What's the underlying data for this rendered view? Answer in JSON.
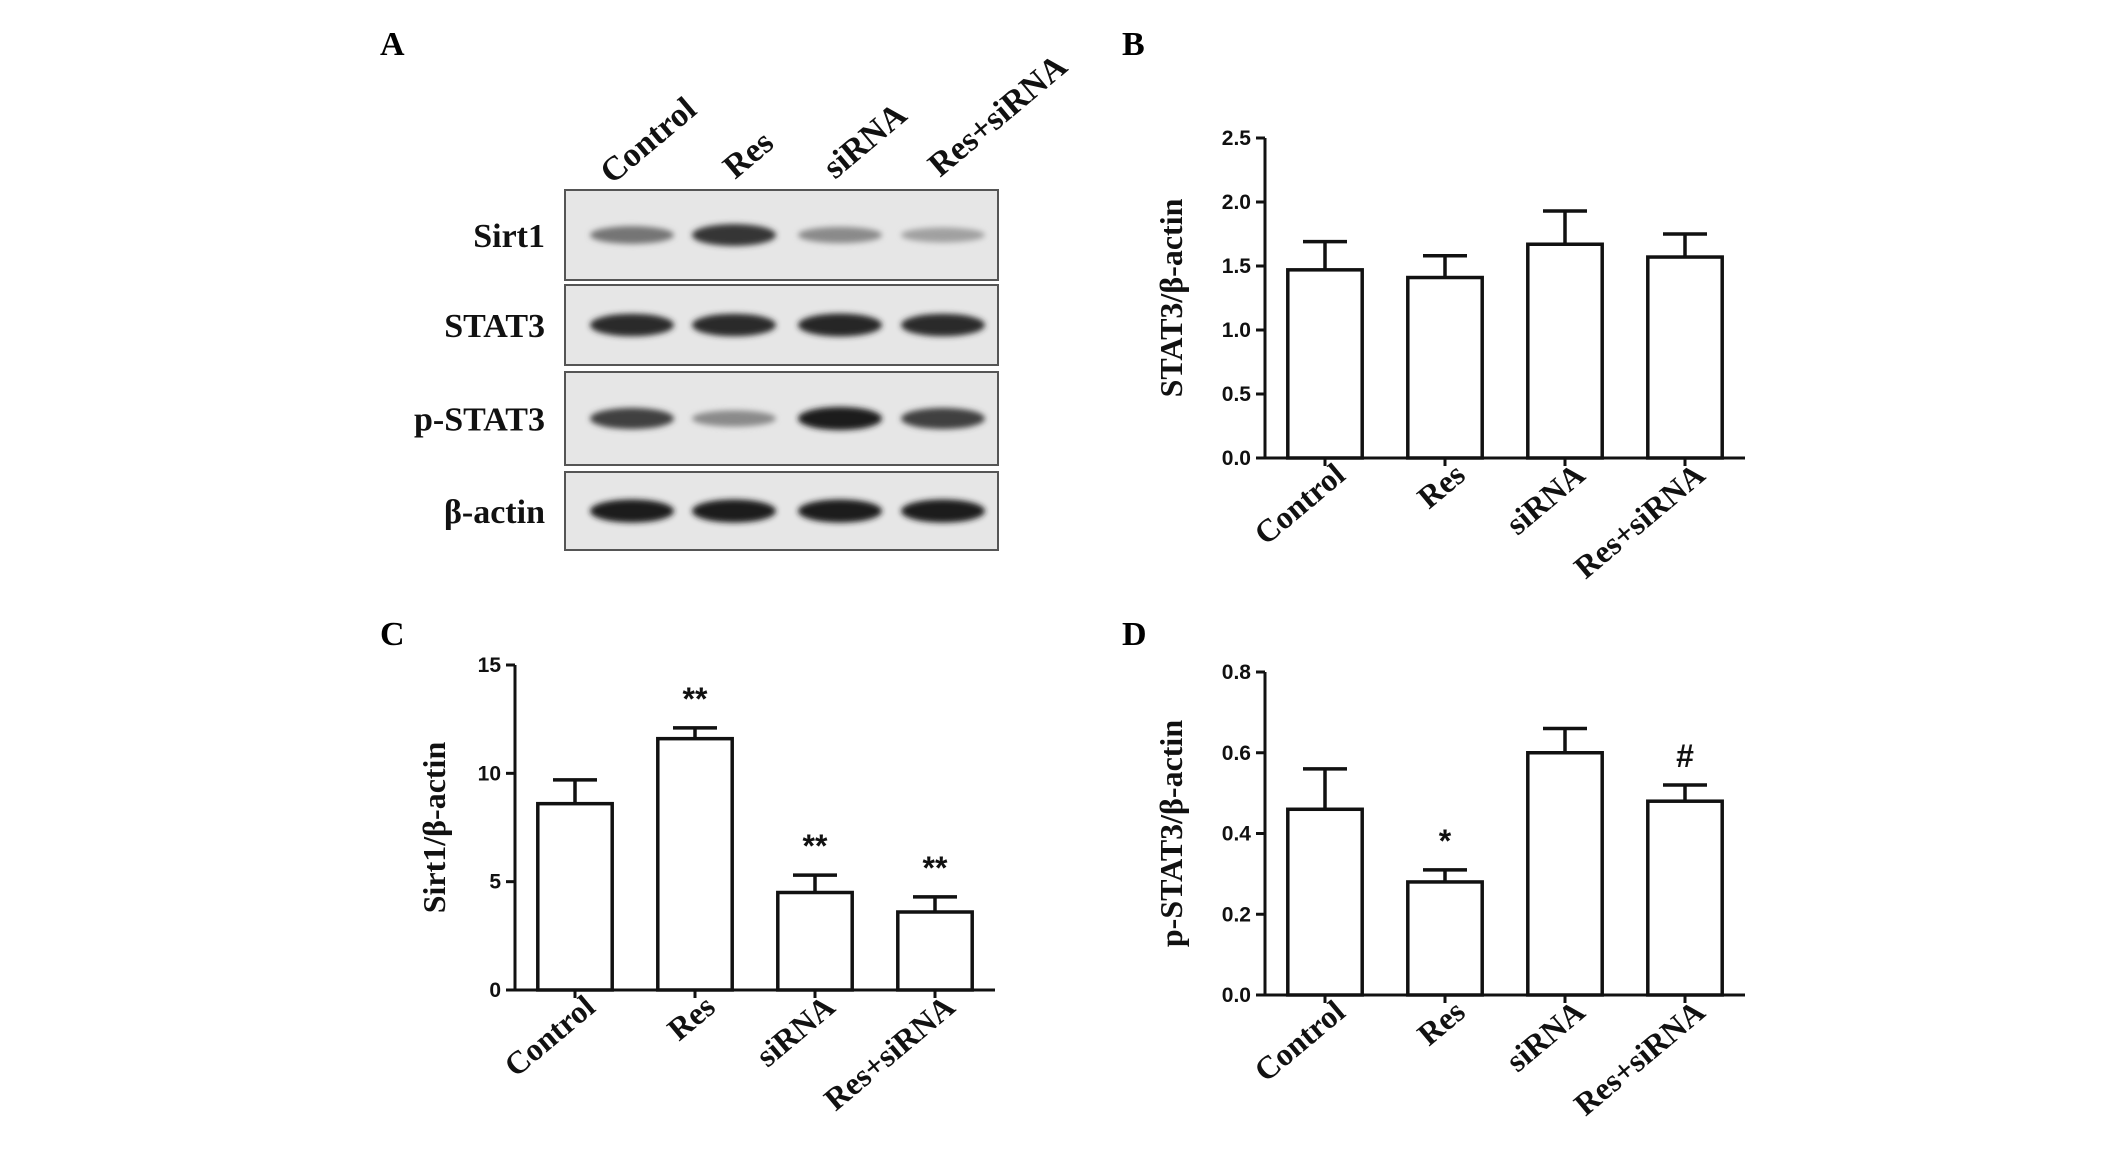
{
  "panels": {
    "A": "A",
    "B": "B",
    "C": "C",
    "D": "D"
  },
  "western_blot": {
    "lanes": [
      "Control",
      "Res",
      "siRNA",
      "Res+siRNA"
    ],
    "rows": [
      {
        "label": "Sirt1",
        "intensity": [
          0.55,
          0.85,
          0.45,
          0.35
        ]
      },
      {
        "label": "STAT3",
        "intensity": [
          0.9,
          0.9,
          0.92,
          0.9
        ]
      },
      {
        "label": "p-STAT3",
        "intensity": [
          0.8,
          0.45,
          0.95,
          0.8
        ]
      },
      {
        "label": "β-actin",
        "intensity": [
          0.95,
          0.95,
          0.95,
          0.95
        ]
      }
    ]
  },
  "chart_data": [
    {
      "panel": "B",
      "type": "bar",
      "categories": [
        "Control",
        "Res",
        "siRNA",
        "Res+siRNA"
      ],
      "values": [
        1.47,
        1.41,
        1.67,
        1.57
      ],
      "errors": [
        0.22,
        0.17,
        0.26,
        0.18
      ],
      "significance": [
        "",
        "",
        "",
        ""
      ],
      "ylabel": "STAT3/β-actin",
      "xlabel": "",
      "ylim": [
        0,
        2.5
      ],
      "yticks": [
        "0.0",
        "0.5",
        "1.0",
        "1.5",
        "2.0",
        "2.5"
      ],
      "ytick_values": [
        0,
        0.5,
        1.0,
        1.5,
        2.0,
        2.5
      ],
      "grid": false
    },
    {
      "panel": "C",
      "type": "bar",
      "categories": [
        "Control",
        "Res",
        "siRNA",
        "Res+siRNA"
      ],
      "values": [
        8.6,
        11.6,
        4.5,
        3.6
      ],
      "errors": [
        1.1,
        0.5,
        0.8,
        0.7
      ],
      "significance": [
        "",
        "**",
        "**",
        "**"
      ],
      "ylabel": "Sirt1/β-actin",
      "xlabel": "",
      "ylim": [
        0,
        15
      ],
      "yticks": [
        "0",
        "5",
        "10",
        "15"
      ],
      "ytick_values": [
        0,
        5,
        10,
        15
      ],
      "grid": false
    },
    {
      "panel": "D",
      "type": "bar",
      "categories": [
        "Control",
        "Res",
        "siRNA",
        "Res+siRNA"
      ],
      "values": [
        0.46,
        0.28,
        0.6,
        0.48
      ],
      "errors": [
        0.1,
        0.03,
        0.06,
        0.04
      ],
      "significance": [
        "",
        "*",
        "",
        "#"
      ],
      "ylabel": "p-STAT3/β-actin",
      "xlabel": "",
      "ylim": [
        0,
        0.8
      ],
      "yticks": [
        "0.0",
        "0.2",
        "0.4",
        "0.6",
        "0.8"
      ],
      "ytick_values": [
        0,
        0.2,
        0.4,
        0.6,
        0.8
      ],
      "grid": false
    }
  ]
}
